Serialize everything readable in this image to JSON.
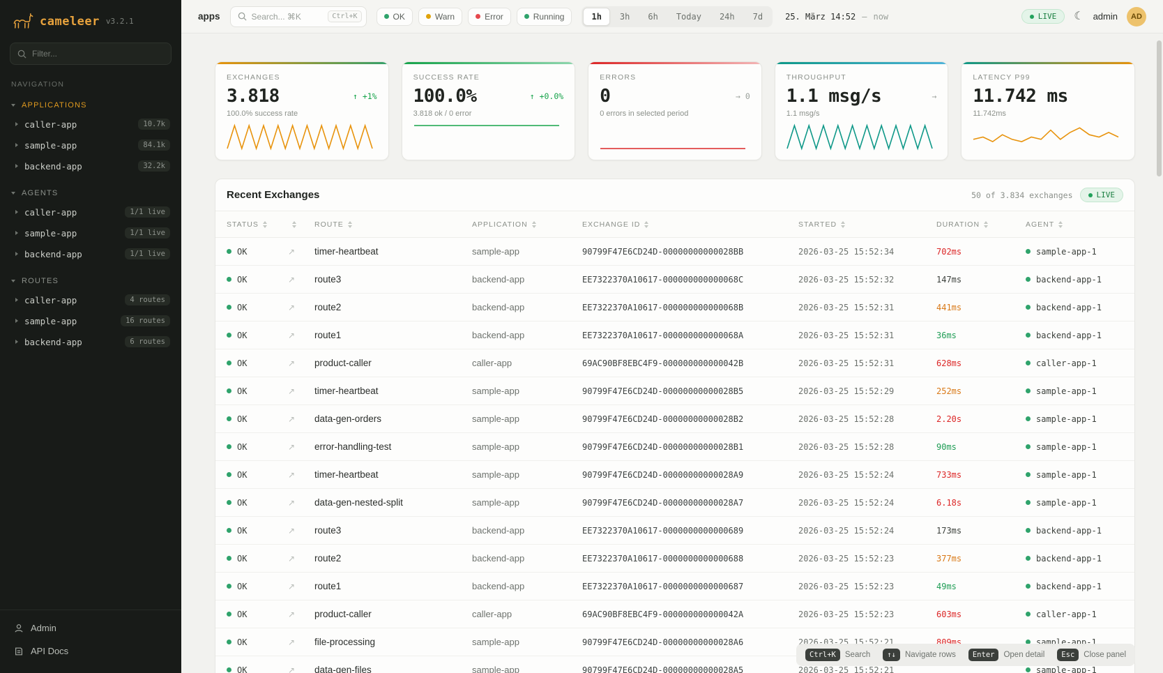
{
  "sidebar": {
    "logo_name": "cameleer",
    "logo_version": "v3.2.1",
    "filter_placeholder": "Filter...",
    "nav_label": "NAVIGATION",
    "sections": [
      {
        "title": "APPLICATIONS",
        "items": [
          {
            "label": "caller-app",
            "badge": "10.7k"
          },
          {
            "label": "sample-app",
            "badge": "84.1k"
          },
          {
            "label": "backend-app",
            "badge": "32.2k"
          }
        ]
      },
      {
        "title": "AGENTS",
        "items": [
          {
            "label": "caller-app",
            "badge": "1/1 live"
          },
          {
            "label": "sample-app",
            "badge": "1/1 live"
          },
          {
            "label": "backend-app",
            "badge": "1/1 live"
          }
        ]
      },
      {
        "title": "ROUTES",
        "items": [
          {
            "label": "caller-app",
            "badge": "4 routes"
          },
          {
            "label": "sample-app",
            "badge": "16 routes"
          },
          {
            "label": "backend-app",
            "badge": "6 routes"
          }
        ]
      }
    ],
    "footer": [
      {
        "label": "Admin"
      },
      {
        "label": "API Docs"
      }
    ]
  },
  "topbar": {
    "context_label": "apps",
    "search_placeholder": "Search... ⌘K",
    "search_shortcut": "Ctrl+K",
    "status_filters": [
      {
        "label": "OK",
        "color": "#2fa36b"
      },
      {
        "label": "Warn",
        "color": "#e0a30a"
      },
      {
        "label": "Error",
        "color": "#e5484d"
      },
      {
        "label": "Running",
        "color": "#2fa36b"
      }
    ],
    "time_ranges": [
      {
        "label": "1h"
      },
      {
        "label": "3h"
      },
      {
        "label": "6h"
      },
      {
        "label": "Today"
      },
      {
        "label": "24h"
      },
      {
        "label": "7d"
      }
    ],
    "active_range": "1h",
    "date_label": "25. März 14:52",
    "date_separator": "—",
    "date_now": "now",
    "live_label": "LIVE",
    "theme_icon": "☾",
    "username": "admin",
    "avatar_initials": "AD"
  },
  "cards": [
    {
      "title": "EXCHANGES",
      "value": "3.818",
      "delta": "↑ +1%",
      "delta_color": "#16a34a",
      "sub": "100.0% success rate",
      "accent": [
        "#e8930c",
        "#35a06b"
      ],
      "spark": {
        "values": [
          0,
          1,
          0,
          1,
          0,
          1,
          0,
          1,
          0,
          1,
          0,
          1,
          0,
          1,
          0,
          1,
          0,
          1,
          0,
          1,
          0
        ],
        "min": 0,
        "max": 1,
        "color": "#e8930c"
      }
    },
    {
      "title": "SUCCESS RATE",
      "value": "100.0%",
      "delta": "↑ +0.0%",
      "delta_color": "#16a34a",
      "sub": "3.818 ok / 0 error",
      "accent": [
        "#16a34a",
        "#8fd6ae"
      ],
      "spark": {
        "values": [
          100,
          100
        ],
        "min": 0,
        "max": 100,
        "color": "#16a34a"
      }
    },
    {
      "title": "ERRORS",
      "value": "0",
      "delta": "→ 0",
      "delta_color": "#9aa09a",
      "sub": "0 errors in selected period",
      "accent": [
        "#dc2626",
        "#f3b6b6"
      ],
      "spark": {
        "values": [
          0,
          0
        ],
        "min": 0,
        "max": 1,
        "color": "#dc2626"
      }
    },
    {
      "title": "THROUGHPUT",
      "value": "1.1 msg/s",
      "delta": "→",
      "delta_color": "#9aa09a",
      "sub": "1.1 msg/s",
      "accent": [
        "#0e9888",
        "#4fb3d9"
      ],
      "spark": {
        "values": [
          0,
          1,
          0,
          1,
          0,
          1,
          0,
          1,
          0,
          1,
          0,
          1,
          0,
          1,
          0,
          1,
          0,
          1,
          0,
          1,
          0
        ],
        "min": 0,
        "max": 1,
        "color": "#0e9888"
      }
    },
    {
      "title": "LATENCY P99",
      "value": "11.742 ms",
      "delta": "",
      "delta_color": "#9aa09a",
      "sub": "11.742ms",
      "accent": [
        "#0e9888",
        "#e8930c"
      ],
      "spark": {
        "values": [
          4,
          5,
          3,
          6,
          4,
          3,
          5,
          4,
          8,
          4,
          7,
          9,
          6,
          5,
          7,
          5
        ],
        "min": 0,
        "max": 10,
        "color": "#e8930c"
      }
    }
  ],
  "table": {
    "title": "Recent Exchanges",
    "meta": "50 of 3.834 exchanges",
    "live_label": "LIVE",
    "open_icon": "↗",
    "columns": [
      {
        "label": "STATUS"
      },
      {
        "label": ""
      },
      {
        "label": "ROUTE"
      },
      {
        "label": "APPLICATION"
      },
      {
        "label": "EXCHANGE ID"
      },
      {
        "label": "STARTED"
      },
      {
        "label": "DURATION"
      },
      {
        "label": "AGENT"
      }
    ],
    "rows": [
      {
        "status": "OK",
        "route": "timer-heartbeat",
        "app": "sample-app",
        "id": "90799F47E6CD24D-00000000000028BB",
        "started": "2026-03-25 15:52:34",
        "duration": "702ms",
        "duration_level": "slow",
        "agent": "sample-app-1"
      },
      {
        "status": "OK",
        "route": "route3",
        "app": "backend-app",
        "id": "EE7322370A10617-000000000000068C",
        "started": "2026-03-25 15:52:32",
        "duration": "147ms",
        "duration_level": "normal",
        "agent": "backend-app-1"
      },
      {
        "status": "OK",
        "route": "route2",
        "app": "backend-app",
        "id": "EE7322370A10617-000000000000068B",
        "started": "2026-03-25 15:52:31",
        "duration": "441ms",
        "duration_level": "warn",
        "agent": "backend-app-1"
      },
      {
        "status": "OK",
        "route": "route1",
        "app": "backend-app",
        "id": "EE7322370A10617-000000000000068A",
        "started": "2026-03-25 15:52:31",
        "duration": "36ms",
        "duration_level": "fast",
        "agent": "backend-app-1"
      },
      {
        "status": "OK",
        "route": "product-caller",
        "app": "caller-app",
        "id": "69AC90BF8EBC4F9-000000000000042B",
        "started": "2026-03-25 15:52:31",
        "duration": "628ms",
        "duration_level": "slow",
        "agent": "caller-app-1"
      },
      {
        "status": "OK",
        "route": "timer-heartbeat",
        "app": "sample-app",
        "id": "90799F47E6CD24D-00000000000028B5",
        "started": "2026-03-25 15:52:29",
        "duration": "252ms",
        "duration_level": "warn",
        "agent": "sample-app-1"
      },
      {
        "status": "OK",
        "route": "data-gen-orders",
        "app": "sample-app",
        "id": "90799F47E6CD24D-00000000000028B2",
        "started": "2026-03-25 15:52:28",
        "duration": "2.20s",
        "duration_level": "slow",
        "agent": "sample-app-1"
      },
      {
        "status": "OK",
        "route": "error-handling-test",
        "app": "sample-app",
        "id": "90799F47E6CD24D-00000000000028B1",
        "started": "2026-03-25 15:52:28",
        "duration": "90ms",
        "duration_level": "fast",
        "agent": "sample-app-1"
      },
      {
        "status": "OK",
        "route": "timer-heartbeat",
        "app": "sample-app",
        "id": "90799F47E6CD24D-00000000000028A9",
        "started": "2026-03-25 15:52:24",
        "duration": "733ms",
        "duration_level": "slow",
        "agent": "sample-app-1"
      },
      {
        "status": "OK",
        "route": "data-gen-nested-split",
        "app": "sample-app",
        "id": "90799F47E6CD24D-00000000000028A7",
        "started": "2026-03-25 15:52:24",
        "duration": "6.18s",
        "duration_level": "slow",
        "agent": "sample-app-1"
      },
      {
        "status": "OK",
        "route": "route3",
        "app": "backend-app",
        "id": "EE7322370A10617-0000000000000689",
        "started": "2026-03-25 15:52:24",
        "duration": "173ms",
        "duration_level": "normal",
        "agent": "backend-app-1"
      },
      {
        "status": "OK",
        "route": "route2",
        "app": "backend-app",
        "id": "EE7322370A10617-0000000000000688",
        "started": "2026-03-25 15:52:23",
        "duration": "377ms",
        "duration_level": "warn",
        "agent": "backend-app-1"
      },
      {
        "status": "OK",
        "route": "route1",
        "app": "backend-app",
        "id": "EE7322370A10617-0000000000000687",
        "started": "2026-03-25 15:52:23",
        "duration": "49ms",
        "duration_level": "fast",
        "agent": "backend-app-1"
      },
      {
        "status": "OK",
        "route": "product-caller",
        "app": "caller-app",
        "id": "69AC90BF8EBC4F9-000000000000042A",
        "started": "2026-03-25 15:52:23",
        "duration": "603ms",
        "duration_level": "slow",
        "agent": "caller-app-1"
      },
      {
        "status": "OK",
        "route": "file-processing",
        "app": "sample-app",
        "id": "90799F47E6CD24D-00000000000028A6",
        "started": "2026-03-25 15:52:21",
        "duration": "809ms",
        "duration_level": "slow",
        "agent": "sample-app-1"
      },
      {
        "status": "OK",
        "route": "data-gen-files",
        "app": "sample-app",
        "id": "90799F47E6CD24D-00000000000028A5",
        "started": "2026-03-25 15:52:21",
        "duration": "",
        "duration_level": "normal",
        "agent": "sample-app-1"
      }
    ]
  },
  "shortcuts": [
    {
      "key": "Ctrl+K",
      "label": "Search"
    },
    {
      "key": "↑↓",
      "label": "Navigate rows"
    },
    {
      "key": "Enter",
      "label": "Open detail"
    },
    {
      "key": "Esc",
      "label": "Close panel"
    }
  ]
}
